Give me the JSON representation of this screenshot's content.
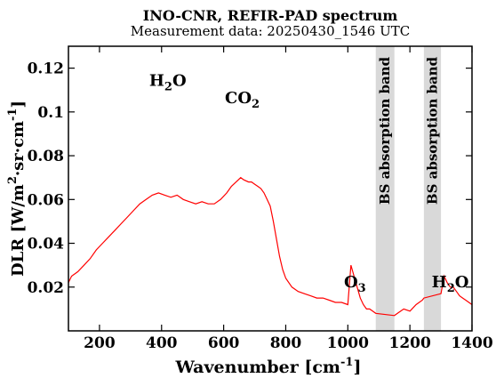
{
  "chart_data": {
    "type": "line",
    "title": "INO-CNR, REFIR-PAD spectrum",
    "subtitle": "Measurement data: 20250430_1546 UTC",
    "xlabel": "Wavenumber [cm",
    "xlabel_sup": "-1",
    "xlabel_close": "]",
    "ylabel": {
      "p1": "DLR [W/m",
      "s1": "2",
      "p2": "·sr·cm",
      "s2": "-1",
      "p3": "]"
    },
    "xlim": [
      100,
      1400
    ],
    "ylim": [
      0,
      0.13
    ],
    "xticks": [
      {
        "value": 200,
        "label": "200"
      },
      {
        "value": 400,
        "label": "400"
      },
      {
        "value": 600,
        "label": "600"
      },
      {
        "value": 800,
        "label": "800"
      },
      {
        "value": 1000,
        "label": "1000"
      },
      {
        "value": 1200,
        "label": "1200"
      },
      {
        "value": 1400,
        "label": "1400"
      }
    ],
    "yticks": [
      {
        "value": 0.02,
        "label": "0.02"
      },
      {
        "value": 0.04,
        "label": "0.04"
      },
      {
        "value": 0.06,
        "label": "0.06"
      },
      {
        "value": 0.08,
        "label": "0.08"
      },
      {
        "value": 0.1,
        "label": "0.1"
      },
      {
        "value": 0.12,
        "label": "0.12"
      }
    ],
    "line_color": "#ff0000",
    "band_color": "#d9d9d9",
    "bands": [
      {
        "x0": 1090,
        "x1": 1150,
        "label": "BS absorption band"
      },
      {
        "x0": 1245,
        "x1": 1300,
        "label": "BS absorption band"
      }
    ],
    "annotations": [
      {
        "id": "h2o-left",
        "text": "H",
        "sub": "2",
        "tail": "O",
        "x": 420,
        "y": 0.112
      },
      {
        "id": "co2",
        "text": "CO",
        "sub": "2",
        "tail": "",
        "x": 660,
        "y": 0.104
      },
      {
        "id": "o3",
        "text": "O",
        "sub": "3",
        "tail": "",
        "x": 1023,
        "y": 0.02
      },
      {
        "id": "h2o-right",
        "text": "H",
        "sub": "2",
        "tail": "O",
        "x": 1330,
        "y": 0.02
      }
    ],
    "series": [
      {
        "x": [
          100,
          110,
          130,
          150,
          170,
          190,
          210,
          230,
          250,
          270,
          290,
          310,
          330,
          350,
          370,
          390,
          410,
          430,
          450,
          470,
          490,
          510,
          530,
          550,
          570,
          590,
          610,
          625,
          640,
          655,
          665,
          680,
          690,
          700,
          710,
          720,
          730,
          740,
          750,
          760,
          770,
          780,
          790,
          800,
          820,
          840,
          860,
          880,
          900,
          920,
          940,
          960,
          980,
          1000,
          1010,
          1020,
          1030,
          1040,
          1050,
          1060,
          1070,
          1080,
          1090,
          1150,
          1160,
          1180,
          1200,
          1220,
          1240,
          1245,
          1300,
          1310,
          1320,
          1330,
          1340,
          1350,
          1360,
          1370,
          1380,
          1390,
          1400
        ],
        "y": [
          0.022,
          0.025,
          0.027,
          0.03,
          0.033,
          0.037,
          0.04,
          0.043,
          0.046,
          0.049,
          0.052,
          0.055,
          0.058,
          0.06,
          0.062,
          0.063,
          0.062,
          0.061,
          0.062,
          0.06,
          0.059,
          0.058,
          0.059,
          0.058,
          0.058,
          0.06,
          0.063,
          0.066,
          0.068,
          0.07,
          0.069,
          0.068,
          0.068,
          0.067,
          0.066,
          0.065,
          0.063,
          0.06,
          0.057,
          0.05,
          0.042,
          0.034,
          0.028,
          0.024,
          0.02,
          0.018,
          0.017,
          0.016,
          0.015,
          0.015,
          0.014,
          0.013,
          0.013,
          0.012,
          0.03,
          0.025,
          0.02,
          0.015,
          0.012,
          0.01,
          0.01,
          0.009,
          0.008,
          0.007,
          0.008,
          0.01,
          0.009,
          0.012,
          0.014,
          0.015,
          0.017,
          0.025,
          0.022,
          0.02,
          0.02,
          0.018,
          0.016,
          0.015,
          0.014,
          0.013,
          0.012
        ]
      }
    ]
  }
}
